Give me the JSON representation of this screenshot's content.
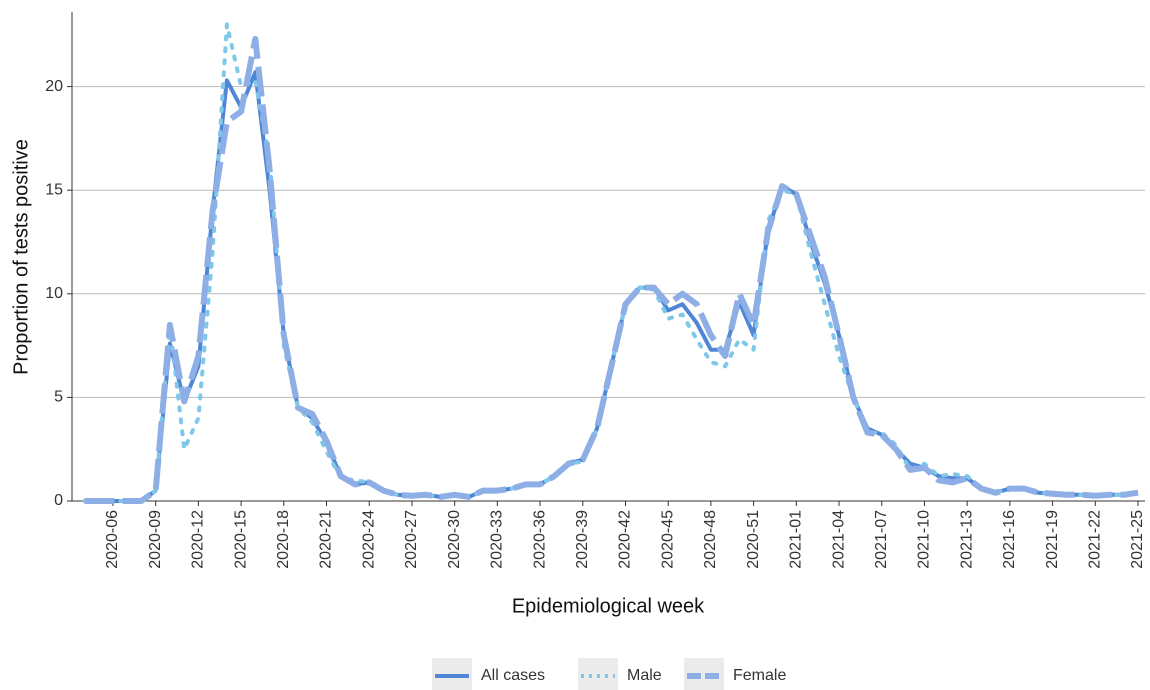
{
  "chart_data": {
    "type": "line",
    "x_label": "Epidemiological week",
    "y_label": "Proportion of tests positive",
    "categories": [
      null,
      null,
      "2020-06",
      null,
      null,
      "2020-09",
      null,
      null,
      "2020-12",
      null,
      null,
      "2020-15",
      null,
      null,
      "2020-18",
      null,
      null,
      "2020-21",
      null,
      null,
      "2020-24",
      null,
      null,
      "2020-27",
      null,
      null,
      "2020-30",
      null,
      null,
      "2020-33",
      null,
      null,
      "2020-36",
      null,
      null,
      "2020-39",
      null,
      null,
      "2020-42",
      null,
      null,
      "2020-45",
      null,
      null,
      "2020-48",
      null,
      null,
      "2020-51",
      null,
      null,
      "2021-01",
      null,
      null,
      "2021-04",
      null,
      null,
      "2021-07",
      null,
      null,
      "2021-10",
      null,
      null,
      "2021-13",
      null,
      null,
      "2021-16",
      null,
      null,
      "2021-19",
      null,
      null,
      "2021-22",
      null,
      null,
      "2021-25"
    ],
    "series": [
      {
        "name": "All cases",
        "color": "#4f86d6",
        "style": "solid",
        "values": [
          0,
          0,
          0,
          0,
          0,
          0.5,
          7.6,
          4.8,
          6.5,
          14,
          20.3,
          19,
          20.7,
          15,
          8,
          4.5,
          4,
          2.8,
          1.2,
          0.8,
          0.9,
          0.5,
          0.3,
          0.25,
          0.3,
          0.2,
          0.3,
          0.2,
          0.5,
          0.5,
          0.6,
          0.8,
          0.8,
          1.2,
          1.8,
          2,
          3.5,
          6.5,
          9.5,
          10.3,
          10.3,
          9.2,
          9.5,
          8.6,
          7.3,
          7.3,
          9.6,
          8,
          13,
          15.2,
          14.8,
          12.5,
          10.5,
          8,
          5,
          3.5,
          3.2,
          2.5,
          1.8,
          1.6,
          1.2,
          1.1,
          1.1,
          0.6,
          0.4,
          0.6,
          0.6,
          0.4,
          0.35,
          0.3,
          0.3,
          0.25,
          0.3,
          0.3,
          0.4
        ]
      },
      {
        "name": "Male",
        "color": "#7ec8ea",
        "style": "dotted",
        "values": [
          0,
          0,
          0,
          0,
          0,
          0.5,
          8.5,
          2.5,
          4,
          12,
          23,
          20,
          20.3,
          16.5,
          7.5,
          4.5,
          3.8,
          2.4,
          1.1,
          1,
          0.9,
          0.5,
          0.3,
          0.25,
          0.3,
          0.2,
          0.3,
          0.2,
          0.5,
          0.5,
          0.6,
          0.8,
          0.8,
          1.2,
          1.8,
          1.9,
          3.5,
          6.5,
          9.5,
          10.3,
          10.2,
          8.8,
          9,
          7.8,
          6.7,
          6.5,
          7.8,
          7.3,
          13.5,
          15,
          14.8,
          12,
          9.5,
          7,
          5,
          3.3,
          3.3,
          2.7,
          1.5,
          1.8,
          1.2,
          1.3,
          1.2,
          0.6,
          0.4,
          0.6,
          0.6,
          0.4,
          0.35,
          0.3,
          0.3,
          0.25,
          0.3,
          0.3,
          0.4
        ]
      },
      {
        "name": "Female",
        "color": "#8eaee6",
        "style": "dashed",
        "values": [
          0,
          0,
          0,
          0,
          0,
          0.5,
          8.5,
          4.8,
          7,
          14,
          18.3,
          18.8,
          22.3,
          16,
          8,
          4.5,
          4.2,
          2.9,
          1.2,
          0.8,
          0.9,
          0.5,
          0.3,
          0.25,
          0.3,
          0.2,
          0.3,
          0.2,
          0.5,
          0.5,
          0.6,
          0.8,
          0.8,
          1.2,
          1.8,
          2,
          3.5,
          6.5,
          9.5,
          10.3,
          10.3,
          9.5,
          10,
          9.5,
          8,
          7,
          10,
          8.5,
          13,
          15.2,
          14.8,
          12.8,
          10.8,
          8,
          5,
          3.3,
          3.2,
          2.5,
          1.5,
          1.6,
          1,
          0.9,
          1.1,
          0.6,
          0.4,
          0.6,
          0.6,
          0.4,
          0.35,
          0.3,
          0.3,
          0.25,
          0.3,
          0.3,
          0.4
        ]
      }
    ],
    "ylim": [
      0,
      23.6
    ],
    "yticks": [
      0,
      5,
      10,
      15,
      20
    ],
    "grid": true,
    "legend": "bottom"
  }
}
